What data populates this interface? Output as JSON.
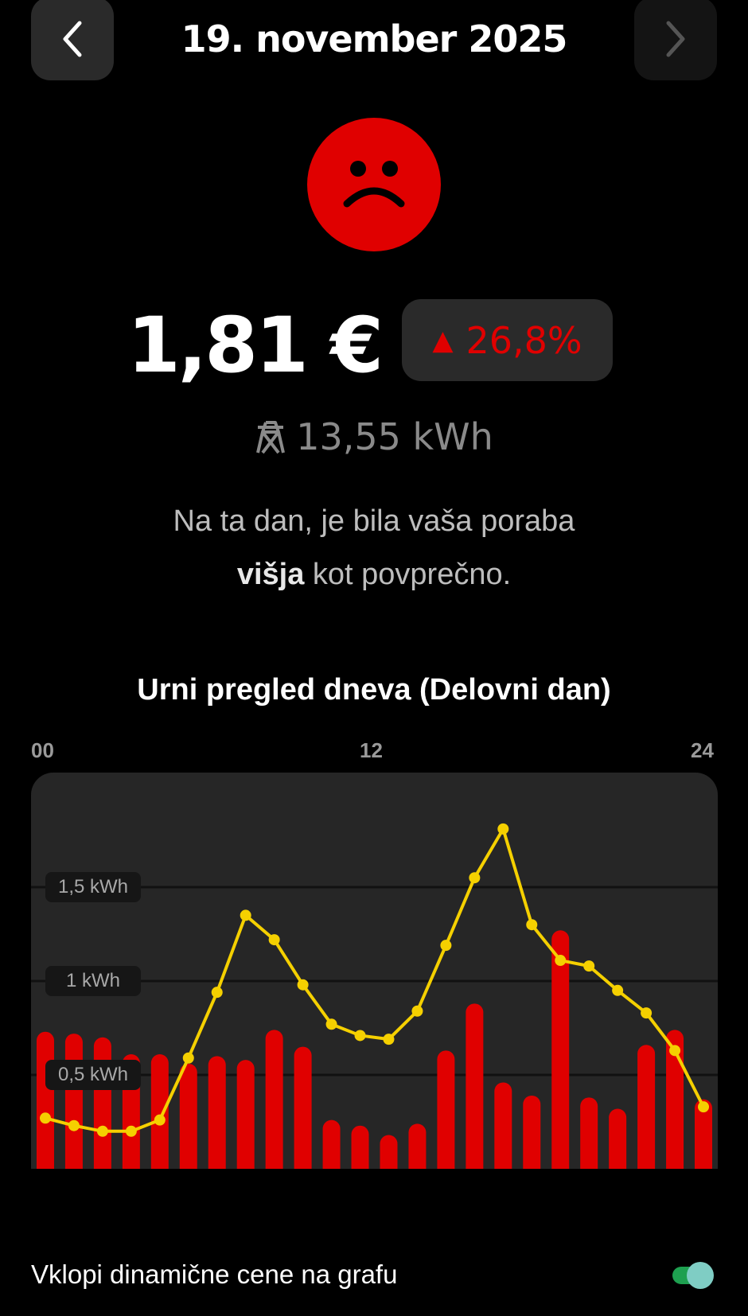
{
  "header": {
    "title": "19. november 2025",
    "prev_icon": "chevron-left-icon",
    "next_icon": "chevron-right-icon"
  },
  "mood": {
    "icon": "sad-face-icon",
    "color": "#e00000"
  },
  "summary": {
    "price": "1,81 €",
    "change_arrow": "▲",
    "change": "26,8%",
    "change_color": "#e00000",
    "energy_icon": "power-pylon-icon",
    "energy": "13,55 kWh"
  },
  "description": {
    "line1": "Na ta dan, je bila vaša poraba",
    "emphasis": "višja",
    "line2_rest": " kot povprečno."
  },
  "chart_data": {
    "type": "bar",
    "title": "Urni pregled dneva (Delovni dan)",
    "x_ticks": [
      "00",
      "12",
      "24"
    ],
    "y_ticks": [
      "0,5 kWh",
      "1 kWh",
      "1,5 kWh"
    ],
    "ylim": [
      0,
      2.1
    ],
    "grid": true,
    "categories": [
      0,
      1,
      2,
      3,
      4,
      5,
      6,
      7,
      8,
      9,
      10,
      11,
      12,
      13,
      14,
      15,
      16,
      17,
      18,
      19,
      20,
      21,
      22,
      23
    ],
    "series": [
      {
        "type": "bar",
        "color": "#e00000",
        "values": [
          0.73,
          0.72,
          0.7,
          0.61,
          0.61,
          0.56,
          0.6,
          0.58,
          0.74,
          0.65,
          0.26,
          0.23,
          0.18,
          0.24,
          0.63,
          0.88,
          0.46,
          0.39,
          1.27,
          0.38,
          0.32,
          0.66,
          0.74,
          0.37
        ]
      },
      {
        "type": "line",
        "color": "#f5d000",
        "values": [
          0.27,
          0.23,
          0.2,
          0.2,
          0.26,
          0.59,
          0.94,
          1.35,
          1.22,
          0.98,
          0.77,
          0.71,
          0.69,
          0.84,
          1.19,
          1.55,
          1.81,
          1.3,
          1.11,
          1.08,
          0.95,
          0.83,
          0.63,
          0.33
        ]
      }
    ]
  },
  "toggle": {
    "label": "Vklopi dinamične cene na grafu",
    "on": true,
    "track_color": "#1ea050",
    "thumb_color": "#7fcdc4"
  }
}
